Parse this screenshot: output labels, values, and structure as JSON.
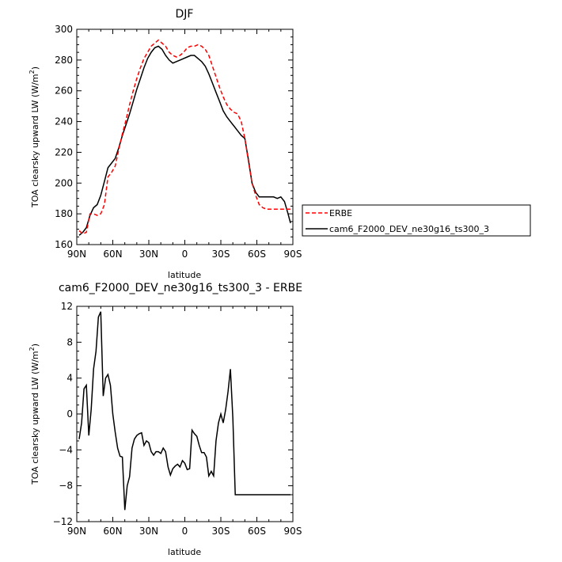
{
  "chart_data": [
    {
      "type": "line",
      "title": "DJF",
      "xlabel": "latitude",
      "ylabel": "TOA clearsky upward LW (W/m",
      "ylabel_sup": "2",
      "ylabel_tail": ")",
      "x_tick_labels": [
        "90N",
        "60N",
        "30N",
        "0",
        "30S",
        "60S",
        "90S"
      ],
      "y_tick_labels": [
        "160",
        "180",
        "200",
        "220",
        "240",
        "260",
        "280",
        "300"
      ],
      "xlim": [
        -90,
        90
      ],
      "ylim": [
        160,
        300
      ],
      "legend_placement": "right",
      "series": [
        {
          "name": "ERBE",
          "color": "#ff0000",
          "dash": "dashed",
          "x": [
            -88,
            -85,
            -82,
            -79,
            -76,
            -73,
            -70,
            -67,
            -64,
            -61,
            -58,
            -55,
            -52,
            -49,
            -46,
            -43,
            -40,
            -37,
            -34,
            -31,
            -28,
            -25,
            -22,
            -19,
            -16,
            -13,
            -10,
            -7,
            -4,
            -1,
            2,
            5,
            8,
            11,
            14,
            17,
            20,
            23,
            26,
            29,
            32,
            35,
            38,
            41,
            44,
            47,
            50,
            53,
            56,
            59,
            62,
            65,
            68,
            71,
            74,
            77,
            80,
            83,
            86,
            88
          ],
          "values": [
            169,
            167,
            168,
            180,
            180,
            179,
            180,
            186,
            204,
            207,
            211,
            222,
            232,
            241,
            251,
            260,
            268,
            275,
            281,
            285,
            289,
            291,
            293,
            291,
            289,
            285,
            283,
            282,
            283,
            285,
            288,
            289,
            289,
            290,
            289,
            287,
            283,
            276,
            269,
            262,
            256,
            251,
            248,
            246,
            245,
            240,
            229,
            214,
            200,
            192,
            186,
            184,
            183,
            183,
            183,
            183,
            183,
            183,
            183,
            183
          ]
        },
        {
          "name": "cam6_F2000_DEV_ne30g16_ts300_3",
          "color": "#000000",
          "dash": "solid",
          "x": [
            -88,
            -85,
            -82,
            -79,
            -76,
            -73,
            -70,
            -67,
            -64,
            -61,
            -58,
            -55,
            -52,
            -49,
            -46,
            -43,
            -40,
            -37,
            -34,
            -31,
            -28,
            -25,
            -22,
            -19,
            -16,
            -13,
            -10,
            -7,
            -4,
            -1,
            2,
            5,
            8,
            11,
            14,
            17,
            20,
            23,
            26,
            29,
            32,
            35,
            38,
            41,
            44,
            47,
            50,
            53,
            56,
            59,
            62,
            65,
            68,
            71,
            74,
            77,
            80,
            83,
            86,
            88
          ],
          "values": [
            166,
            168,
            171,
            179,
            184,
            186,
            192,
            201,
            210,
            213,
            216,
            223,
            231,
            238,
            245,
            253,
            261,
            268,
            275,
            281,
            285,
            288,
            289,
            287,
            283,
            280,
            278,
            279,
            280,
            281,
            282,
            283,
            283,
            281,
            279,
            276,
            271,
            265,
            259,
            253,
            247,
            243,
            240,
            237,
            234,
            231,
            229,
            215,
            200,
            194,
            191,
            191,
            191,
            191,
            191,
            190,
            191,
            188,
            180,
            174
          ]
        }
      ]
    },
    {
      "type": "line",
      "title": "cam6_F2000_DEV_ne30g16_ts300_3 - ERBE",
      "xlabel": "latitude",
      "ylabel": "TOA clearsky upward LW (W/m",
      "ylabel_sup": "2",
      "ylabel_tail": ")",
      "x_tick_labels": [
        "90N",
        "60N",
        "30N",
        "0",
        "30S",
        "60S",
        "90S"
      ],
      "y_tick_labels": [
        "−12",
        "−8",
        "−4",
        "0",
        "4",
        "8",
        "12"
      ],
      "xlim": [
        -90,
        90
      ],
      "ylim": [
        -12,
        12
      ],
      "series": [
        {
          "color": "#000000",
          "dash": "solid",
          "x": [
            -88,
            -86,
            -84,
            -82,
            -80,
            -78,
            -76,
            -74,
            -72,
            -70,
            -68,
            -66,
            -64,
            -62,
            -60,
            -58,
            -56,
            -54,
            -52,
            -50,
            -48,
            -46,
            -44,
            -42,
            -40,
            -38,
            -36,
            -34,
            -32,
            -30,
            -28,
            -26,
            -24,
            -22,
            -20,
            -18,
            -16,
            -14,
            -12,
            -10,
            -8,
            -6,
            -4,
            -2,
            0,
            2,
            4,
            6,
            8,
            10,
            12,
            14,
            16,
            18,
            20,
            22,
            24,
            26,
            28,
            30,
            32,
            34,
            36,
            38,
            40,
            42,
            44,
            46,
            48,
            50,
            52,
            54,
            56,
            58,
            60,
            62,
            64,
            66,
            68,
            70,
            72,
            74,
            76,
            78,
            80,
            82,
            84,
            86,
            88
          ],
          "values": [
            -2.8,
            -1.0,
            2.8,
            3.2,
            -2.4,
            0.5,
            5.0,
            7.0,
            10.8,
            11.4,
            2.0,
            4.0,
            4.4,
            3.2,
            0.0,
            -2.0,
            -3.8,
            -4.7,
            -4.8,
            -10.7,
            -8.0,
            -7.0,
            -3.8,
            -2.8,
            -2.4,
            -2.2,
            -2.1,
            -3.5,
            -3.0,
            -3.2,
            -4.2,
            -4.6,
            -4.2,
            -4.2,
            -4.4,
            -3.8,
            -4.2,
            -5.9,
            -6.8,
            -6.1,
            -5.8,
            -5.6,
            -5.9,
            -5.2,
            -5.5,
            -6.2,
            -6.1,
            -1.8,
            -2.2,
            -2.5,
            -3.5,
            -4.3,
            -4.3,
            -4.8,
            -6.9,
            -6.4,
            -6.9,
            -3.0,
            -1.0,
            0.0,
            -1.0,
            0.5,
            2.5,
            5.0,
            -0.5,
            -9.0,
            -9.0,
            -9.0,
            -9.0,
            -9.0,
            -9.0,
            -9.0,
            -9.0,
            -9.0,
            -9.0,
            -9.0,
            -9.0,
            -9.0,
            -9.0,
            -9.0,
            -9.0,
            -9.0,
            -9.0,
            -9.0,
            -9.0,
            -9.0,
            -9.0,
            -9.0,
            -9.0
          ]
        }
      ]
    }
  ]
}
